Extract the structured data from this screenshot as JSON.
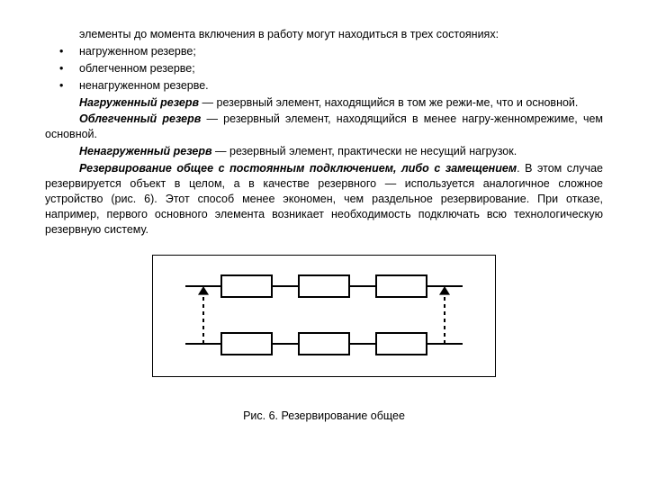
{
  "intro": "элементы до момента включения в работу могут находиться в трех состояниях:",
  "bullets": [
    "нагруженном резерве;",
    "облегченном резерве;",
    "ненагруженном резерве."
  ],
  "p_nagr_def_bold": "Нагруженный резерв",
  "p_nagr_def_rest": " — резервный элемент, находящийся в том же режи-ме, что и основной.",
  "p_obl_def_bold": "Облегченный резерв",
  "p_obl_def_rest": " — резервный элемент, находящийся в менее нагру-женномрежиме, чем основной.",
  "p_nen_def_bold": "Ненагруженный резерв",
  "p_nen_def_rest": " — резервный элемент, практически не несущий нагрузок.",
  "p_rezerv_bold": "Резервирование общее с постоянным подключением, либо с замещением",
  "p_rezerv_rest_1": ". В этом случае резервируется объект в целом, а в качестве резервного — используется аналогичное сложное устройство (рис. 6). Этот способ менее экономен, чем раздельное  резервирование. При отказе, например,   первого  основного  элемента возникает  необходимость подключать всю технологическую резервную систему.",
  "caption": "Рис. 6. Резервирование общее",
  "diagram": {
    "type": "flowchart",
    "bg": "#ffffff",
    "stroke": "#000000",
    "stroke_width": 2,
    "rect_w": 56,
    "rect_h": 24,
    "row_gap": 40,
    "col_gap": 30,
    "lead": 40,
    "dash": "4,4",
    "arrow_size": 6
  }
}
